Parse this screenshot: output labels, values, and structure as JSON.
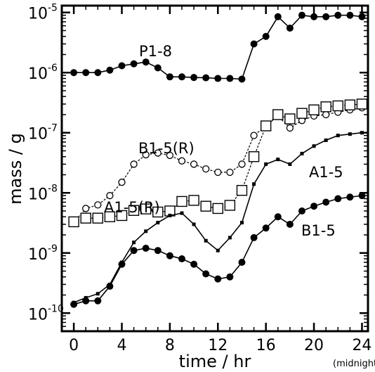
{
  "chart_data": {
    "type": "line",
    "xlabel": "time / hr",
    "ylabel": "mass / g",
    "x_note": "(midnight)",
    "xlim": [
      -1,
      24.5
    ],
    "ylim": [
      5e-11,
      1.3e-05
    ],
    "yscale": "log",
    "grid": false,
    "xticks": [
      0,
      4,
      8,
      12,
      16,
      20,
      24
    ],
    "xtick_labels": [
      "0",
      "4",
      "8",
      "12",
      "16",
      "20",
      "24"
    ],
    "yticks": [
      1e-10,
      1e-09,
      1e-08,
      1e-07,
      1e-06,
      1e-05
    ],
    "ytick_labels": [
      {
        "base": "10",
        "exp": "-10"
      },
      {
        "base": "10",
        "exp": "-9"
      },
      {
        "base": "10",
        "exp": "-8"
      },
      {
        "base": "10",
        "exp": "-7"
      },
      {
        "base": "10",
        "exp": "-6"
      },
      {
        "base": "10",
        "exp": "-5"
      }
    ],
    "series": [
      {
        "name": "P1-8",
        "marker": "filled-circle",
        "line": "solid",
        "x": [
          0,
          1,
          2,
          3,
          4,
          5,
          6,
          7,
          8,
          9,
          10,
          11,
          12,
          13,
          14,
          15,
          16,
          17,
          18,
          19,
          20,
          21,
          22,
          23,
          24
        ],
        "y": [
          1e-06,
          1e-06,
          1e-06,
          1.1e-06,
          1.3e-06,
          1.4e-06,
          1.5e-06,
          1.2e-06,
          8.5e-07,
          8.5e-07,
          8.3e-07,
          8.2e-07,
          8e-07,
          8e-07,
          7.8e-07,
          3e-06,
          4e-06,
          8.5e-06,
          5.5e-06,
          9e-06,
          8.5e-06,
          8.5e-06,
          9e-06,
          9e-06,
          8.5e-06
        ]
      },
      {
        "name": "B1-5(R)",
        "marker": "open-circle",
        "line": "dashed",
        "x": [
          0,
          1,
          2,
          3,
          4,
          5,
          6,
          7,
          8,
          9,
          10,
          11,
          12,
          13,
          14,
          15,
          16,
          17,
          18,
          19,
          20,
          21,
          22,
          23,
          24
        ],
        "y": [
          3.2e-09,
          5.5e-09,
          6.3e-09,
          9e-09,
          1.5e-08,
          3e-08,
          4.3e-08,
          4.6e-08,
          4.2e-08,
          3.4e-08,
          3e-08,
          2.5e-08,
          2.2e-08,
          2.2e-08,
          3e-08,
          9e-08,
          1.3e-07,
          1.9e-07,
          1.2e-07,
          1.6e-07,
          1.9e-07,
          2e-07,
          2.2e-07,
          2.4e-07,
          2.6e-07
        ]
      },
      {
        "name": "A1-5(R)",
        "marker": "open-square",
        "line": "dashed",
        "x": [
          0,
          1,
          2,
          3,
          4,
          5,
          6,
          7,
          8,
          9,
          10,
          11,
          12,
          13,
          14,
          15,
          16,
          17,
          18,
          19,
          20,
          21,
          22,
          23,
          24
        ],
        "y": [
          3.3e-09,
          3.8e-09,
          3.8e-09,
          4e-09,
          4.2e-09,
          5.1e-09,
          5.4e-09,
          4.8e-09,
          5e-09,
          7.2e-09,
          7.5e-09,
          6e-09,
          5.5e-09,
          6.2e-09,
          1.1e-08,
          4e-08,
          1.3e-07,
          2e-07,
          1.7e-07,
          2.1e-07,
          2.4e-07,
          2.7e-07,
          2.8e-07,
          2.9e-07,
          3e-07
        ]
      },
      {
        "name": "A1-5",
        "marker": "small-filled-square",
        "line": "solid",
        "x": [
          0,
          1,
          2,
          3,
          4,
          5,
          6,
          7,
          8,
          9,
          10,
          11,
          12,
          13,
          14,
          15,
          16,
          17,
          18,
          19,
          20,
          21,
          22,
          23,
          24
        ],
        "y": [
          1.5e-10,
          1.8e-10,
          2.1e-10,
          3e-10,
          7e-10,
          1.5e-09,
          2.3e-09,
          3.2e-09,
          4.2e-09,
          4.6e-09,
          3e-09,
          1.6e-09,
          1.1e-09,
          1.8e-09,
          3.2e-09,
          1.4e-08,
          3e-08,
          3.6e-08,
          3e-08,
          4.5e-08,
          6e-08,
          7.5e-08,
          9e-08,
          9.5e-08,
          1e-07
        ]
      },
      {
        "name": "B1-5",
        "marker": "filled-circle",
        "line": "solid",
        "x": [
          0,
          1,
          2,
          3,
          4,
          5,
          6,
          7,
          8,
          9,
          10,
          11,
          12,
          13,
          14,
          15,
          16,
          17,
          18,
          19,
          20,
          21,
          22,
          23,
          24
        ],
        "y": [
          1.4e-10,
          1.6e-10,
          1.6e-10,
          2.8e-10,
          6.5e-10,
          1.1e-09,
          1.2e-09,
          1.1e-09,
          9e-10,
          8e-10,
          6.5e-10,
          4.5e-10,
          3.7e-10,
          4e-10,
          7e-10,
          1.8e-09,
          2.6e-09,
          4e-09,
          3e-09,
          5e-09,
          6e-09,
          7e-09,
          8e-09,
          8.5e-09,
          9e-09
        ]
      }
    ]
  }
}
